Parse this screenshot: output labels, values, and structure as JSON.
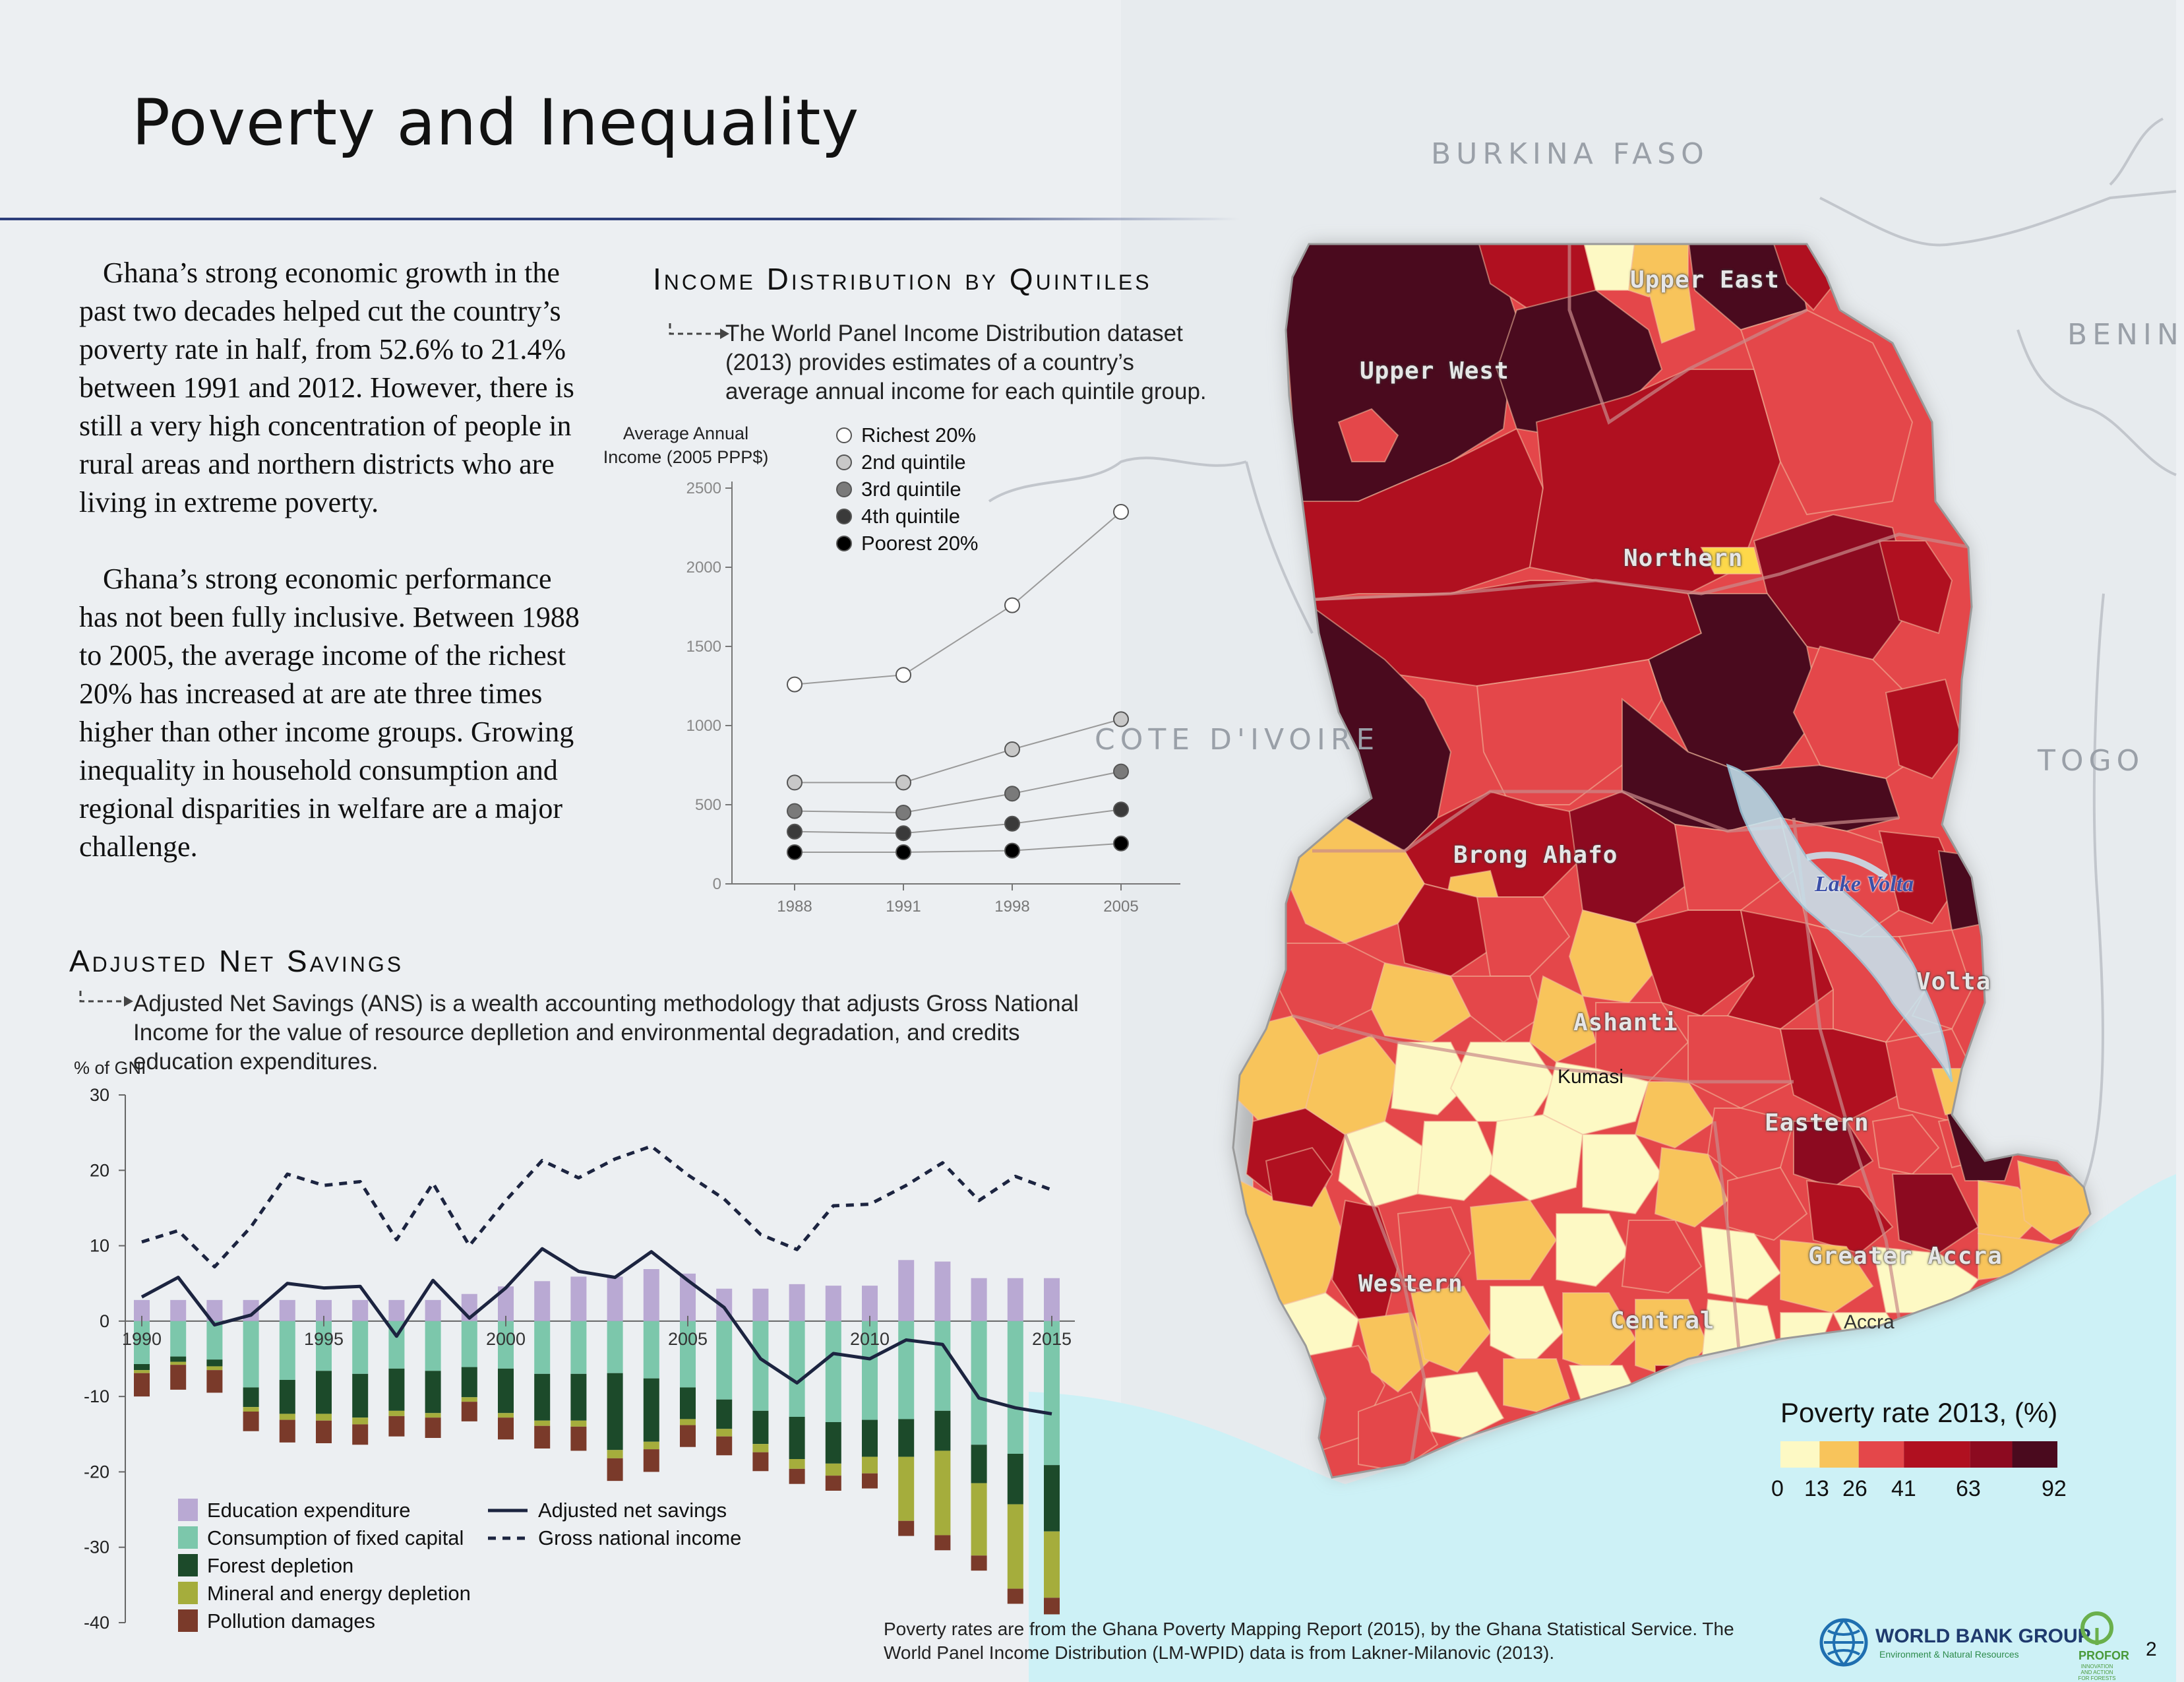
{
  "page": {
    "title": "Poverty and Inequality",
    "page_number": "2"
  },
  "intro": {
    "para1": "Ghana’s strong economic growth in the past two decades helped cut the country’s poverty rate in half, from 52.6% to 21.4% between 1991 and 2012. However, there is still a very high concentration of people in rural areas and northern districts who are living in extreme poverty.",
    "para2": "Ghana’s strong economic performance has not been fully inclusive. Between 1988 to 2005, the average income of the richest 20% has increased at are ate three times higher than other income groups. Growing inequality in household consumption and regional disparities in welfare are a major challenge."
  },
  "map": {
    "countries": [
      "BURKINA FASO",
      "BENIN",
      "TOGO",
      "COTE D'IVOIRE"
    ],
    "regions": [
      "Upper East",
      "Upper West",
      "Northern",
      "Brong Ahafo",
      "Ashanti",
      "Volta",
      "Eastern",
      "Western",
      "Central",
      "Greater Accra"
    ],
    "cities": [
      "Kumasi",
      "Accra"
    ],
    "lake": "Lake Volta",
    "palette": [
      "#fdf9c4",
      "#f8c45b",
      "#e4474a",
      "#b01020",
      "#8c0a20",
      "#4a0a1e"
    ],
    "legend": {
      "title": "Poverty rate 2013, (%)",
      "ticks": [
        "0",
        "13",
        "26",
        "41",
        "63",
        "92"
      ]
    }
  },
  "quintiles": {
    "title": "Income Distribution by Quintiles",
    "description": "The World Panel Income Distribution dataset (2013) provides estimates of a country’s average annual income for each quintile group."
  },
  "ans": {
    "title": "Adjusted Net Savings",
    "description": "Adjusted Net Savings (ANS) is a wealth accounting methodology that adjusts Gross National Income for the value of resource deplletion and environmental degradation, and credits education expenditures."
  },
  "chart_data": [
    {
      "type": "scatter",
      "ylabel": "Average Annual Income (2005 PPP$)",
      "ylim": [
        0,
        2500
      ],
      "yticks": [
        0,
        500,
        1000,
        1500,
        2000,
        2500
      ],
      "x": [
        "1988",
        "1991",
        "1998",
        "2005"
      ],
      "legend_position": "top-left",
      "series": [
        {
          "name": "Richest 20%",
          "color": "#ffffff",
          "values": [
            1260,
            1320,
            1760,
            2350
          ]
        },
        {
          "name": "2nd quintile",
          "color": "#c8c8c8",
          "values": [
            640,
            640,
            850,
            1040
          ]
        },
        {
          "name": "3rd quintile",
          "color": "#7a7a7a",
          "values": [
            460,
            450,
            570,
            710
          ]
        },
        {
          "name": "4th quintile",
          "color": "#3a3a3a",
          "values": [
            330,
            320,
            380,
            470
          ]
        },
        {
          "name": "Poorest 20%",
          "color": "#000000",
          "values": [
            200,
            200,
            210,
            255
          ]
        }
      ]
    },
    {
      "type": "bar",
      "stacked": true,
      "ylabel": "% of GNI",
      "ylim": [
        -40,
        30
      ],
      "yticks": [
        30,
        20,
        10,
        0,
        -10,
        -20,
        -30,
        -40
      ],
      "xtick_labels": [
        "1990",
        "1995",
        "2000",
        "2005",
        "2010",
        "2015"
      ],
      "years": [
        1990,
        1991,
        1992,
        1993,
        1994,
        1995,
        1996,
        1997,
        1998,
        1999,
        2000,
        2001,
        2002,
        2003,
        2004,
        2005,
        2006,
        2007,
        2008,
        2009,
        2010,
        2011,
        2012,
        2013,
        2014,
        2015
      ],
      "series": [
        {
          "name": "Education expenditure",
          "color": "#b9a9d3",
          "values": [
            2.8,
            2.8,
            2.8,
            2.8,
            2.8,
            2.8,
            2.8,
            2.8,
            2.8,
            3.6,
            4.6,
            5.3,
            5.9,
            5.9,
            6.9,
            6.3,
            4.3,
            4.3,
            4.9,
            4.7,
            4.7,
            8.1,
            7.9,
            5.7,
            5.7,
            5.7
          ]
        },
        {
          "name": "Consumption of fixed capital",
          "color": "#7cc7ab",
          "values": [
            -5.7,
            -4.7,
            -5.1,
            -8.8,
            -7.8,
            -6.6,
            -7.0,
            -6.3,
            -6.6,
            -6.1,
            -6.3,
            -7.0,
            -7.0,
            -6.9,
            -7.6,
            -8.8,
            -10.4,
            -11.9,
            -12.7,
            -13.4,
            -13.1,
            -13.0,
            -11.9,
            -16.4,
            -17.6,
            -19.1
          ]
        },
        {
          "name": "Forest depletion",
          "color": "#1c4a2a",
          "values": [
            -0.8,
            -0.7,
            -0.9,
            -2.6,
            -4.5,
            -5.7,
            -5.8,
            -5.6,
            -5.6,
            -4.0,
            -5.9,
            -6.2,
            -6.2,
            -10.2,
            -8.4,
            -4.2,
            -3.9,
            -4.4,
            -5.6,
            -5.5,
            -4.9,
            -5.0,
            -5.3,
            -5.1,
            -6.7,
            -8.8
          ]
        },
        {
          "name": "Mineral and energy depletion",
          "color": "#a5ad3c",
          "values": [
            -0.4,
            -0.4,
            -0.5,
            -0.6,
            -0.8,
            -0.9,
            -0.9,
            -0.7,
            -0.6,
            -0.6,
            -0.6,
            -0.7,
            -0.8,
            -1.1,
            -1.0,
            -0.8,
            -1.0,
            -1.1,
            -1.3,
            -1.6,
            -2.2,
            -8.5,
            -11.2,
            -9.6,
            -11.2,
            -8.8
          ]
        },
        {
          "name": "Pollution damages",
          "color": "#7a3a2a",
          "values": [
            -3.1,
            -3.3,
            -3.0,
            -2.6,
            -3.0,
            -3.0,
            -2.7,
            -2.7,
            -2.7,
            -2.6,
            -2.9,
            -3.0,
            -3.2,
            -3.0,
            -3.0,
            -2.9,
            -2.5,
            -2.5,
            -2.0,
            -2.0,
            -2.0,
            -2.0,
            -2.0,
            -2.0,
            -2.0,
            -2.2
          ]
        },
        {
          "name": "Adjusted net savings",
          "type": "line",
          "style": "solid",
          "color": "#1c2440",
          "values": [
            3.2,
            5.8,
            -0.5,
            0.8,
            5.0,
            4.4,
            4.6,
            -2.0,
            5.4,
            0.4,
            4.4,
            9.6,
            6.6,
            5.8,
            9.2,
            5.4,
            1.8,
            -5.0,
            -8.2,
            -4.3,
            -5.0,
            -2.5,
            -3.1,
            -10.2,
            -11.5,
            -12.3
          ]
        },
        {
          "name": "Gross national income",
          "type": "line",
          "style": "dashed",
          "color": "#1c2440",
          "values": [
            10.5,
            12.0,
            7.2,
            12.5,
            19.5,
            18.0,
            18.5,
            10.8,
            18.3,
            10.0,
            16.0,
            21.3,
            19.0,
            21.5,
            23.2,
            19.4,
            16.2,
            11.5,
            9.5,
            15.3,
            15.5,
            18.0,
            21.0,
            16.0,
            19.2,
            17.4
          ]
        }
      ]
    }
  ],
  "footnote": "Poverty rates are from the Ghana Poverty Mapping Report (2015), by the Ghana Statistical Service. The World Panel Income Distribution (LM-WPID) data is from Lakner-Milanovic (2013).",
  "logos": {
    "wbg_name": "WORLD BANK GROUP",
    "wbg_sub": "Environment & Natural Resources",
    "profor_name": "PROFOR",
    "profor_sub": "INNOVATION AND ACTION FOR FORESTS"
  }
}
